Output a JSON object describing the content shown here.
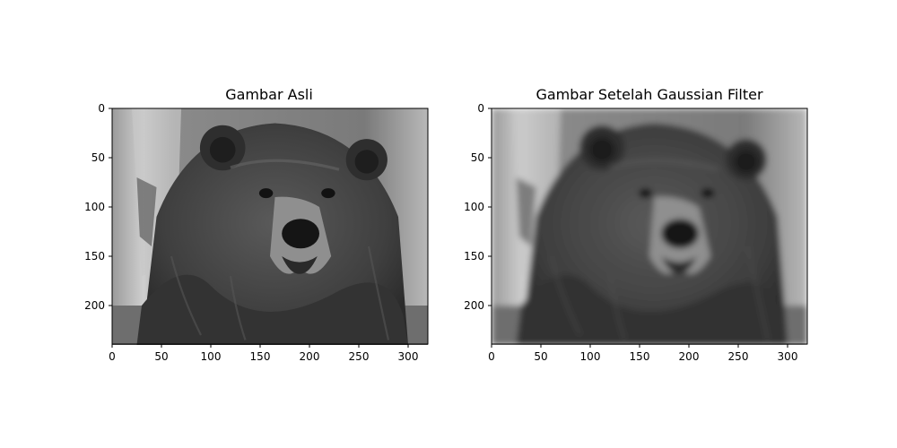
{
  "figure": {
    "panels": [
      {
        "title": "Gambar Asli",
        "image": {
          "subject": "grayscale photo of a brown bear facing camera",
          "filter": "none",
          "width": 320,
          "height": 240
        },
        "x_ticks": [
          "0",
          "50",
          "100",
          "150",
          "200",
          "250",
          "300"
        ],
        "y_ticks": [
          "0",
          "50",
          "100",
          "150",
          "200"
        ]
      },
      {
        "title": "Gambar Setelah Gaussian Filter",
        "image": {
          "subject": "grayscale photo of a brown bear facing camera",
          "filter": "gaussian blur",
          "width": 320,
          "height": 240
        },
        "x_ticks": [
          "0",
          "50",
          "100",
          "150",
          "200",
          "250",
          "300"
        ],
        "y_ticks": [
          "0",
          "50",
          "100",
          "150",
          "200"
        ]
      }
    ],
    "colors": {
      "background": "#ffffff",
      "frame": "#000000"
    }
  }
}
